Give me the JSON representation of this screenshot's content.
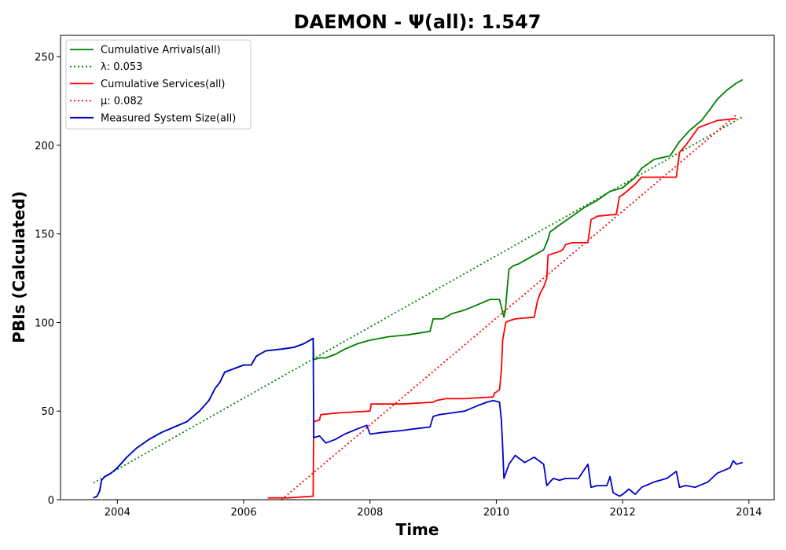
{
  "chart_data": {
    "type": "line",
    "title": "DAEMON -  Ψ(all): 1.547",
    "xlabel": "Time",
    "ylabel": "PBIs (Calculated)",
    "xlim": [
      2003.1,
      2014.4
    ],
    "ylim": [
      0,
      262
    ],
    "xticks": [
      2004,
      2006,
      2008,
      2010,
      2012,
      2014
    ],
    "yticks": [
      0,
      50,
      100,
      150,
      200,
      250
    ],
    "xtick_labels": [
      "2004",
      "2006",
      "2008",
      "2010",
      "2012",
      "2014"
    ],
    "ytick_labels": [
      "0",
      "50",
      "100",
      "150",
      "200",
      "250"
    ],
    "grid": false,
    "legend_position": "top-left",
    "series": [
      {
        "name": "Cumulative Arrivals(all)",
        "color": "#008000",
        "style": "solid",
        "x": [
          2003.62,
          2003.68,
          2003.72,
          2003.75,
          2003.8,
          2003.9,
          2004.0,
          2004.15,
          2004.3,
          2004.5,
          2004.7,
          2004.9,
          2005.1,
          2005.3,
          2005.45,
          2005.55,
          2005.62,
          2005.7,
          2005.85,
          2006.0,
          2006.12,
          2006.2,
          2006.35,
          2006.6,
          2006.8,
          2006.95,
          2007.05,
          2007.1,
          2007.11,
          2007.2,
          2007.3,
          2007.45,
          2007.6,
          2007.8,
          2008.0,
          2008.3,
          2008.6,
          2008.95,
          2009.0,
          2009.15,
          2009.3,
          2009.5,
          2009.7,
          2009.9,
          2010.05,
          2010.12,
          2010.14,
          2010.2,
          2010.27,
          2010.35,
          2010.5,
          2010.6,
          2010.75,
          2010.82,
          2010.85,
          2011.0,
          2011.2,
          2011.4,
          2011.6,
          2011.8,
          2012.0,
          2012.2,
          2012.3,
          2012.5,
          2012.75,
          2012.9,
          2013.05,
          2013.25,
          2013.38,
          2013.5,
          2013.65,
          2013.8,
          2013.9
        ],
        "y": [
          1,
          2,
          5,
          11,
          13,
          15,
          18,
          24,
          29,
          34,
          38,
          41,
          44,
          50,
          56,
          63,
          66,
          72,
          74,
          76,
          76,
          81,
          84,
          85,
          86,
          88,
          90,
          91,
          79,
          80,
          80,
          82,
          85,
          88,
          90,
          92,
          93,
          95,
          102,
          102,
          105,
          107,
          110,
          113,
          113,
          103,
          106,
          130,
          132,
          133,
          136,
          138,
          141,
          147,
          151,
          155,
          160,
          165,
          169,
          174,
          176,
          182,
          187,
          192,
          194,
          202,
          208,
          214,
          220,
          226,
          231,
          235,
          237
        ]
      },
      {
        "name": "λ: 0.053",
        "color": "#008000",
        "style": "dotted",
        "x": [
          2003.62,
          2013.9
        ],
        "y": [
          9.5,
          216
        ]
      },
      {
        "name": "Cumulative Services(all)",
        "color": "#ff0000",
        "style": "solid",
        "x": [
          2006.38,
          2006.7,
          2007.1,
          2007.11,
          2007.2,
          2007.22,
          2007.5,
          2008.0,
          2008.02,
          2008.5,
          2009.0,
          2009.05,
          2009.2,
          2009.5,
          2009.95,
          2009.97,
          2010.05,
          2010.08,
          2010.1,
          2010.15,
          2010.2,
          2010.3,
          2010.6,
          2010.65,
          2010.7,
          2010.75,
          2010.8,
          2010.82,
          2011.0,
          2011.05,
          2011.1,
          2011.2,
          2011.45,
          2011.5,
          2011.6,
          2011.9,
          2011.95,
          2012.0,
          2012.2,
          2012.3,
          2012.85,
          2012.9,
          2013.0,
          2013.2,
          2013.5,
          2013.8
        ],
        "y": [
          1,
          1,
          2,
          44,
          45,
          48,
          49,
          50,
          54,
          54,
          55,
          56,
          57,
          57,
          58,
          60,
          62,
          73,
          90,
          100,
          101,
          102,
          103,
          112,
          117,
          120,
          125,
          138,
          140,
          141,
          144,
          145,
          145,
          158,
          160,
          161,
          171,
          172,
          178,
          182,
          182,
          196,
          200,
          210,
          214,
          215
        ]
      },
      {
        "name": "μ: 0.082",
        "color": "#ff0000",
        "style": "dotted",
        "x": [
          2006.6,
          2013.8
        ],
        "y": [
          0,
          217
        ]
      },
      {
        "name": "Measured System Size(all)",
        "color": "#0000cc",
        "style": "solid",
        "x": [
          2003.62,
          2003.68,
          2003.72,
          2003.75,
          2003.8,
          2003.9,
          2004.0,
          2004.15,
          2004.3,
          2004.5,
          2004.7,
          2004.9,
          2005.1,
          2005.3,
          2005.45,
          2005.55,
          2005.62,
          2005.7,
          2005.85,
          2006.0,
          2006.12,
          2006.2,
          2006.35,
          2006.6,
          2006.8,
          2006.95,
          2007.05,
          2007.1,
          2007.11,
          2007.2,
          2007.3,
          2007.45,
          2007.6,
          2007.8,
          2007.95,
          2008.0,
          2008.2,
          2008.5,
          2008.7,
          2008.95,
          2009.0,
          2009.1,
          2009.3,
          2009.5,
          2009.7,
          2009.85,
          2009.95,
          2010.05,
          2010.08,
          2010.1,
          2010.12,
          2010.2,
          2010.3,
          2010.45,
          2010.6,
          2010.75,
          2010.8,
          2010.9,
          2011.0,
          2011.1,
          2011.3,
          2011.45,
          2011.5,
          2011.6,
          2011.75,
          2011.8,
          2011.85,
          2011.95,
          2012.0,
          2012.1,
          2012.2,
          2012.3,
          2012.5,
          2012.7,
          2012.85,
          2012.9,
          2013.0,
          2013.15,
          2013.35,
          2013.5,
          2013.7,
          2013.75,
          2013.8,
          2013.9
        ],
        "y": [
          1,
          2,
          5,
          11,
          13,
          15,
          18,
          24,
          29,
          34,
          38,
          41,
          44,
          50,
          56,
          63,
          66,
          72,
          74,
          76,
          76,
          81,
          84,
          85,
          86,
          88,
          90,
          91,
          35,
          36,
          32,
          34,
          37,
          40,
          42,
          37,
          38,
          39,
          40,
          41,
          47,
          48,
          49,
          50,
          53,
          55,
          56,
          55,
          45,
          30,
          12,
          20,
          25,
          21,
          24,
          20,
          8,
          12,
          11,
          12,
          12,
          20,
          7,
          8,
          8,
          13,
          4,
          2,
          3,
          6,
          3,
          7,
          10,
          12,
          16,
          7,
          8,
          7,
          10,
          15,
          18,
          22,
          20,
          21
        ]
      }
    ]
  }
}
